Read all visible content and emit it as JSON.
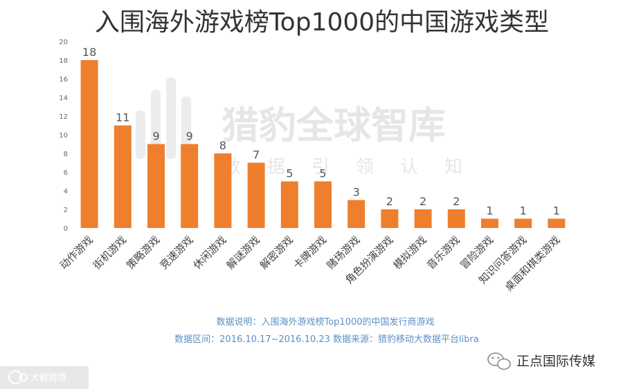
{
  "chart_data": {
    "type": "bar",
    "title": "入围海外游戏榜Top1000的中国游戏类型",
    "categories": [
      "动作游戏",
      "街机游戏",
      "策略游戏",
      "竞速游戏",
      "休闲游戏",
      "解谜游戏",
      "解密游戏",
      "卡牌游戏",
      "赌场游戏",
      "角色扮演游戏",
      "模拟游戏",
      "音乐游戏",
      "冒险游戏",
      "知识问答游戏",
      "桌面和棋类游戏"
    ],
    "values": [
      18,
      11,
      9,
      9,
      8,
      7,
      5,
      5,
      3,
      2,
      2,
      2,
      1,
      1,
      1
    ],
    "ylim": [
      0,
      20
    ],
    "yticks": [
      0,
      2,
      4,
      6,
      8,
      10,
      12,
      14,
      16,
      18,
      20
    ],
    "grid": false,
    "xlabel": "",
    "ylabel": "",
    "bar_color": "#ee7f2d"
  },
  "notes": {
    "line1": "数据说明：入围海外游戏榜Top1000的中国发行商游戏",
    "line2": "数据区间：2016.10.17~2016.10.23    数据来源：猎豹移动大数据平台libra"
  },
  "watermark": {
    "main": "猎豹全球智库",
    "sub": "数据引领认知"
  },
  "corner": {
    "right": "正点国际传媒",
    "left": "大數跨境"
  },
  "colors": {
    "note": "#5b8fc5",
    "bar": "#ee7f2d"
  }
}
